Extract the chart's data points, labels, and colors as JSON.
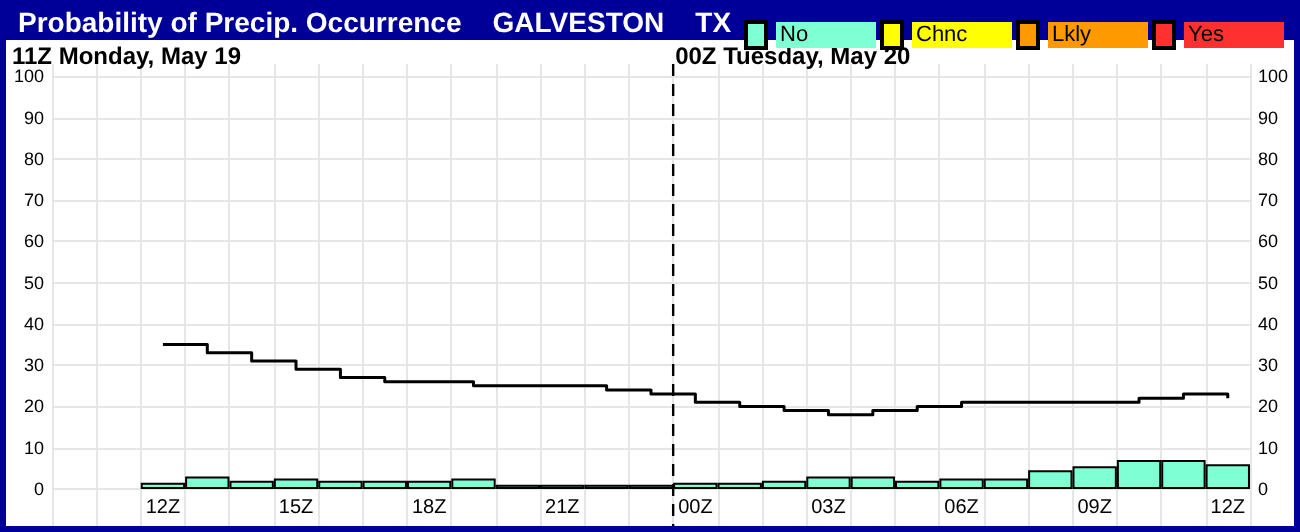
{
  "chart_data": {
    "type": "bar",
    "title": "Probability of Precip. Occurrence    GALVESTON    TX",
    "subtitle": "11Z Monday, May 19",
    "categories": [
      null,
      null,
      "12Z",
      null,
      null,
      "15Z",
      null,
      null,
      "18Z",
      null,
      null,
      "21Z",
      null,
      null,
      "00Z",
      null,
      null,
      "03Z",
      null,
      null,
      "06Z",
      null,
      null,
      "09Z",
      null,
      null,
      "12Z"
    ],
    "series": [
      {
        "name": "No",
        "color": "#7fffd4",
        "values": [
          null,
          null,
          1.5,
          3,
          2,
          2.5,
          2,
          2,
          2,
          2.5,
          1,
          1,
          1,
          1,
          1.5,
          1.5,
          2,
          3,
          3,
          2,
          2.5,
          2.5,
          4.5,
          5.5,
          7,
          7,
          6
        ]
      },
      {
        "name": "Chnc",
        "color": "#ffff00",
        "values": [
          null,
          null,
          null,
          null,
          null,
          null,
          null,
          null,
          null,
          null,
          null,
          null,
          null,
          null,
          null,
          null,
          null,
          null,
          null,
          null,
          null,
          null,
          null,
          null,
          null,
          null,
          null
        ]
      },
      {
        "name": "Lkly",
        "color": "#ff9900",
        "values": [
          null,
          null,
          null,
          null,
          null,
          null,
          null,
          null,
          null,
          null,
          null,
          null,
          null,
          null,
          null,
          null,
          null,
          null,
          null,
          null,
          null,
          null,
          null,
          null,
          null,
          null,
          null
        ]
      },
      {
        "name": "Yes",
        "color": "#ff3030",
        "values": [
          null,
          null,
          null,
          null,
          null,
          null,
          null,
          null,
          null,
          null,
          null,
          null,
          null,
          null,
          null,
          null,
          null,
          null,
          null,
          null,
          null,
          null,
          null,
          null,
          null,
          null,
          null
        ]
      },
      {
        "type": "step",
        "color": "#000000",
        "values": [
          null,
          null,
          35,
          33,
          31,
          29,
          27,
          26,
          26,
          25,
          25,
          25,
          24,
          23,
          21,
          20,
          19,
          18,
          19,
          20,
          21,
          21,
          21,
          21,
          22,
          23,
          22
        ]
      }
    ],
    "ylim": [
      -9,
      103
    ],
    "yticks": [
      0,
      10,
      20,
      30,
      40,
      50,
      60,
      70,
      80,
      90,
      100
    ],
    "y2lim": [
      -9,
      103
    ],
    "y2ticks": [
      0,
      10,
      20,
      30,
      40,
      50,
      60,
      70,
      80,
      90,
      100
    ],
    "ref_lines": [
      {
        "axis": "x",
        "value": "00Z",
        "label": "00Z Tuesday, May 20",
        "line_style": "dashed",
        "color": "#000000"
      }
    ],
    "grid": true,
    "legend": "top right"
  }
}
